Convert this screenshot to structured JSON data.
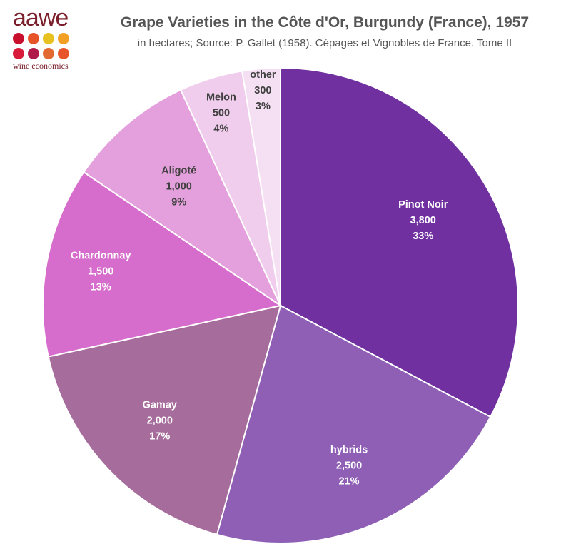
{
  "logo": {
    "word": "aawe",
    "tagline": "wine economics",
    "dot_colors": [
      "#c8102e",
      "#e8542a",
      "#e8c020",
      "#f2a024",
      "#d81b3a",
      "#b01a4a",
      "#e26a30",
      "#e8542a"
    ]
  },
  "chart_data": {
    "type": "pie",
    "title": "Grape Varieties in the Côte d'Or, Burgundy (France), 1957",
    "subtitle": "in hectares; Source: P. Gallet (1958). Cépages et Vignobles de France. Tome II",
    "slices": [
      {
        "label": "Pinot Noir",
        "value": 3800,
        "value_text": "3,800",
        "percent_text": "33%",
        "color": "#7030a0",
        "text_color": "#ffffff"
      },
      {
        "label": "hybrids",
        "value": 2500,
        "value_text": "2,500",
        "percent_text": "21%",
        "color": "#8e5fb5",
        "text_color": "#ffffff"
      },
      {
        "label": "Gamay",
        "value": 2000,
        "value_text": "2,000",
        "percent_text": "17%",
        "color": "#a66c9c",
        "text_color": "#ffffff"
      },
      {
        "label": "Chardonnay",
        "value": 1500,
        "value_text": "1,500",
        "percent_text": "13%",
        "color": "#d66ccb",
        "text_color": "#ffffff"
      },
      {
        "label": "Aligoté",
        "value": 1000,
        "value_text": "1,000",
        "percent_text": "9%",
        "color": "#e4a0dc",
        "text_color": "#404040"
      },
      {
        "label": "Melon",
        "value": 500,
        "value_text": "500",
        "percent_text": "4%",
        "color": "#f0cdec",
        "text_color": "#404040"
      },
      {
        "label": "other",
        "value": 300,
        "value_text": "300",
        "percent_text": "3%",
        "color": "#f5e0f3",
        "text_color": "#404040"
      }
    ]
  }
}
